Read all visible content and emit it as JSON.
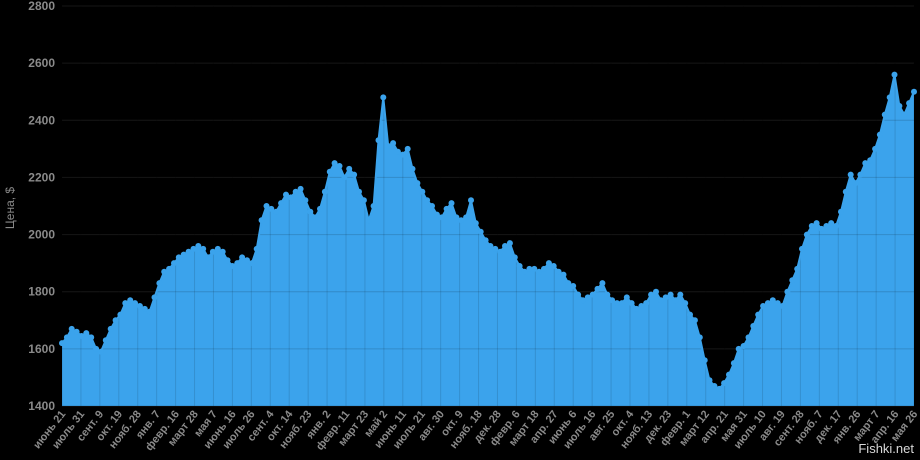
{
  "chart_data": {
    "type": "area",
    "title": "",
    "xlabel": "",
    "ylabel": "Цена, $",
    "ylim": [
      1400,
      2800
    ],
    "yticks": [
      1400,
      1600,
      1800,
      2000,
      2200,
      2400,
      2600,
      2800
    ],
    "grid": true,
    "x_labels": [
      "июнь 21",
      "июль 31",
      "сент. 9",
      "окт. 19",
      "нояб. 28",
      "янв. 7",
      "февр. 16",
      "март 28",
      "мая 7",
      "июнь 16",
      "июль 26",
      "сент. 4",
      "окт. 14",
      "нояб. 23",
      "янв. 2",
      "февр. 11",
      "март 23",
      "май 2",
      "июнь 11",
      "июль 21",
      "авг. 30",
      "окт. 9",
      "нояб. 18",
      "дек. 28",
      "февр. 6",
      "март 18",
      "апр. 27",
      "июнь 6",
      "июль 16",
      "авг. 25",
      "окт. 4",
      "нояб. 13",
      "дек. 23",
      "февр. 1",
      "март 12",
      "апр. 21",
      "мая 31",
      "июль 10",
      "авг. 19",
      "сент. 28",
      "нояб. 7",
      "дек. 17",
      "янв. 26",
      "март 7",
      "апр. 16",
      "мая 26"
    ],
    "series": [
      {
        "color": "#3ba3ec",
        "values": [
          1620,
          1640,
          1670,
          1660,
          1645,
          1655,
          1640,
          1600,
          1590,
          1630,
          1670,
          1700,
          1720,
          1760,
          1770,
          1760,
          1750,
          1740,
          1730,
          1780,
          1830,
          1870,
          1880,
          1900,
          1920,
          1930,
          1940,
          1950,
          1960,
          1950,
          1920,
          1940,
          1950,
          1940,
          1910,
          1890,
          1900,
          1920,
          1910,
          1900,
          1950,
          2050,
          2100,
          2090,
          2080,
          2110,
          2140,
          2130,
          2150,
          2160,
          2120,
          2080,
          2060,
          2090,
          2150,
          2220,
          2250,
          2240,
          2200,
          2230,
          2210,
          2150,
          2120,
          2050,
          2100,
          2330,
          2480,
          2310,
          2320,
          2290,
          2280,
          2300,
          2230,
          2180,
          2150,
          2120,
          2100,
          2070,
          2060,
          2090,
          2110,
          2060,
          2050,
          2060,
          2120,
          2040,
          2010,
          1980,
          1960,
          1950,
          1940,
          1960,
          1970,
          1920,
          1890,
          1870,
          1880,
          1880,
          1870,
          1880,
          1900,
          1890,
          1870,
          1860,
          1830,
          1820,
          1790,
          1770,
          1780,
          1790,
          1810,
          1830,
          1790,
          1770,
          1760,
          1760,
          1780,
          1760,
          1740,
          1750,
          1760,
          1790,
          1800,
          1770,
          1780,
          1790,
          1770,
          1790,
          1760,
          1720,
          1700,
          1640,
          1560,
          1490,
          1470,
          1460,
          1480,
          1510,
          1550,
          1600,
          1610,
          1640,
          1680,
          1720,
          1750,
          1760,
          1770,
          1760,
          1750,
          1800,
          1840,
          1880,
          1950,
          2000,
          2030,
          2040,
          2020,
          2030,
          2040,
          2030,
          2080,
          2150,
          2210,
          2180,
          2210,
          2250,
          2260,
          2300,
          2350,
          2420,
          2480,
          2560,
          2450,
          2420,
          2460,
          2500
        ]
      }
    ]
  },
  "watermark": "Fishki.net"
}
